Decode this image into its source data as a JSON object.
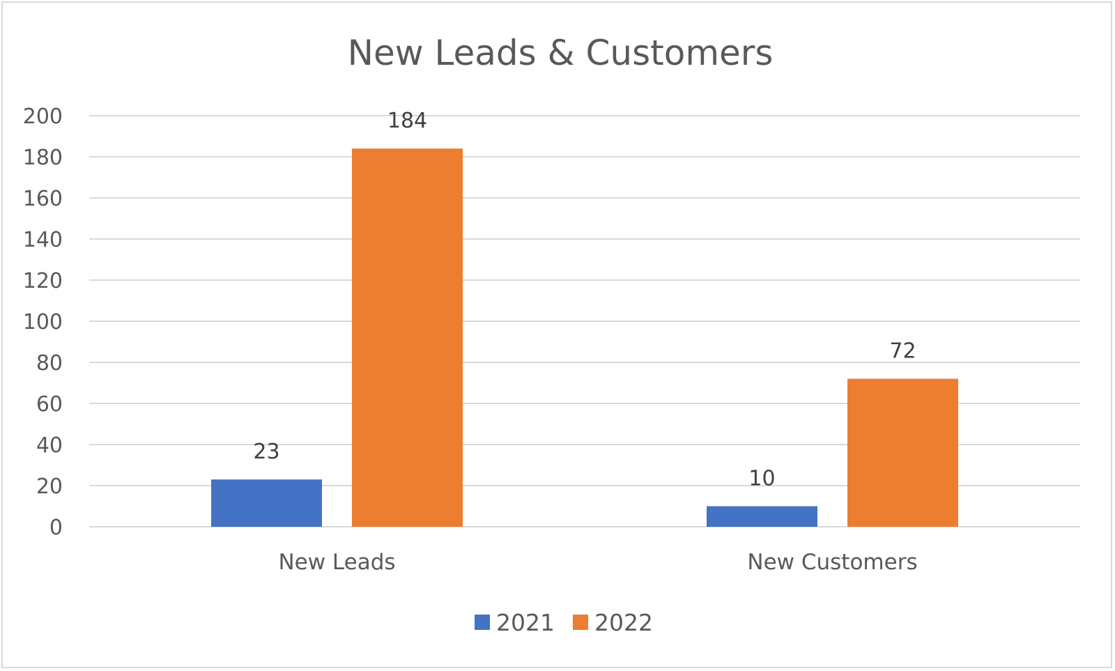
{
  "chart_data": {
    "type": "bar",
    "title": "New Leads & Customers",
    "categories": [
      "New Leads",
      "New Customers"
    ],
    "series": [
      {
        "name": "2021",
        "values": [
          23,
          10
        ],
        "color": "#4472c4"
      },
      {
        "name": "2022",
        "values": [
          184,
          72
        ],
        "color": "#ed7d31"
      }
    ],
    "ylim": [
      0,
      200
    ],
    "yticks": [
      0,
      20,
      40,
      60,
      80,
      100,
      120,
      140,
      160,
      180,
      200
    ],
    "grid": true,
    "gridline_color": "#d9d9d9",
    "data_labels": true,
    "legend_position": "bottom"
  }
}
